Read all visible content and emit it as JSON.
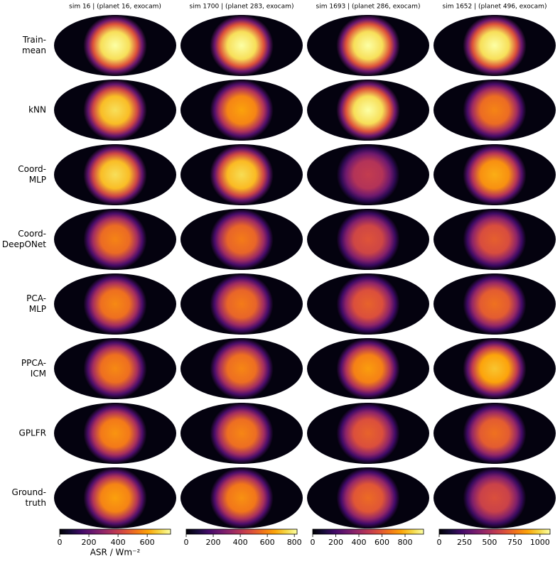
{
  "row_labels": [
    [
      "Train-",
      "mean"
    ],
    [
      "kNN"
    ],
    [
      "Coord-",
      "MLP"
    ],
    [
      "Coord-",
      "DeepONet"
    ],
    [
      "PCA-",
      "MLP"
    ],
    [
      "PPCA-",
      "ICM"
    ],
    [
      "GPLFR"
    ],
    [
      "Ground-",
      "truth"
    ]
  ],
  "chart_data": [
    {
      "type": "map",
      "title": "sim 16 | (planet 16, exocam)",
      "colorbar_label": "ASR / Wm⁻²",
      "clim": [
        0,
        760
      ],
      "cticks": [
        0,
        200,
        400,
        600
      ],
      "peaks": [
        760,
        700,
        700,
        550,
        560,
        560,
        580,
        600
      ]
    },
    {
      "type": "map",
      "title": "sim 1700 | (planet 283, exocam)",
      "clim": [
        0,
        820
      ],
      "cticks": [
        0,
        200,
        400,
        600,
        800
      ],
      "peaks": [
        820,
        650,
        750,
        580,
        580,
        600,
        600,
        620
      ]
    },
    {
      "type": "map",
      "title": "sim 1693 | (planet 286, exocam)",
      "clim": [
        0,
        960
      ],
      "cticks": [
        0,
        200,
        400,
        600,
        800
      ],
      "peaks": [
        960,
        960,
        500,
        580,
        620,
        750,
        620,
        640
      ]
    },
    {
      "type": "map",
      "title": "sim 1652 | (planet 496, exocam)",
      "clim": [
        0,
        1100
      ],
      "cticks": [
        0,
        250,
        500,
        750,
        1000
      ],
      "peaks": [
        1100,
        800,
        900,
        700,
        750,
        950,
        750,
        650
      ]
    }
  ]
}
